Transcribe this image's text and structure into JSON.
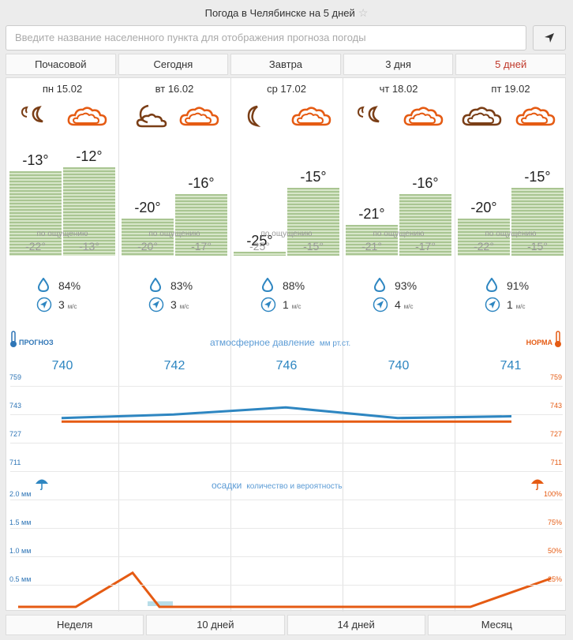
{
  "header": {
    "title": "Погода в Челябинске на 5 дней"
  },
  "search": {
    "placeholder": "Введите название населенного пункта для отображения прогноза погоды"
  },
  "tabs": [
    "Почасовой",
    "Сегодня",
    "Завтра",
    "3 дня",
    "5 дней"
  ],
  "active_tab": 4,
  "days": [
    {
      "date": "пн 15.02",
      "night": "-13°",
      "day": "-12°",
      "feel_night": "-22°",
      "feel_day": "-13°",
      "humidity": "84%",
      "wind": "3",
      "pressure": "740",
      "night_icon": "partly-cloudy-night-icon",
      "day_icon": "cloudy-icon"
    },
    {
      "date": "вт 16.02",
      "night": "-20°",
      "day": "-16°",
      "feel_night": "-20°",
      "feel_day": "-17°",
      "humidity": "83%",
      "wind": "3",
      "pressure": "742",
      "night_icon": "cloudy-night-icon",
      "day_icon": "cloudy-icon"
    },
    {
      "date": "ср 17.02",
      "night": "-25°",
      "day": "-15°",
      "feel_night": "-25°",
      "feel_day": "-15°",
      "humidity": "88%",
      "wind": "1",
      "pressure": "746",
      "night_icon": "moon-icon",
      "day_icon": "cloudy-icon"
    },
    {
      "date": "чт 18.02",
      "night": "-21°",
      "day": "-16°",
      "feel_night": "-21°",
      "feel_day": "-17°",
      "humidity": "93%",
      "wind": "4",
      "pressure": "740",
      "night_icon": "partly-cloudy-night-icon",
      "day_icon": "cloudy-icon"
    },
    {
      "date": "пт 19.02",
      "night": "-20°",
      "day": "-15°",
      "feel_night": "-22°",
      "feel_day": "-15°",
      "humidity": "91%",
      "wind": "1",
      "pressure": "741",
      "night_icon": "cloudy-icon",
      "day_icon": "cloudy-icon"
    }
  ],
  "labels": {
    "feels_like": "по ощущению",
    "wind_unit": "м/с",
    "pressure_title": "атмосферное давление",
    "pressure_unit": "мм рт.ст.",
    "forecast": "ПРОГНОЗ",
    "norm": "НОРМА",
    "precip_title": "осадки",
    "precip_sub": "количество и вероятность"
  },
  "pressure_ticks": [
    "759",
    "743",
    "727",
    "711"
  ],
  "precip_ticks_left": [
    "2.0 мм",
    "1.5 мм",
    "1.0 мм",
    "0.5 мм"
  ],
  "precip_ticks_right": [
    "100%",
    "75%",
    "50%",
    "25%"
  ],
  "chart_data": {
    "type": "line",
    "pressure": {
      "forecast": [
        740,
        742,
        746,
        740,
        741
      ],
      "norm": [
        738,
        738,
        738,
        738,
        738
      ],
      "ylim": [
        711,
        759
      ]
    },
    "precip": {
      "amount_mm": [
        0,
        0.1,
        0,
        0,
        0
      ],
      "probability_pct": [
        0,
        0,
        30,
        0,
        0,
        0,
        0,
        0,
        0,
        0,
        25
      ]
    }
  },
  "bottom_tabs": [
    "Неделя",
    "10 дней",
    "14 дней",
    "Месяц"
  ],
  "colors": {
    "accent": "#c0392b",
    "forecast": "#2e86c1",
    "norm": "#e55b13",
    "bar": "#a9c592"
  }
}
